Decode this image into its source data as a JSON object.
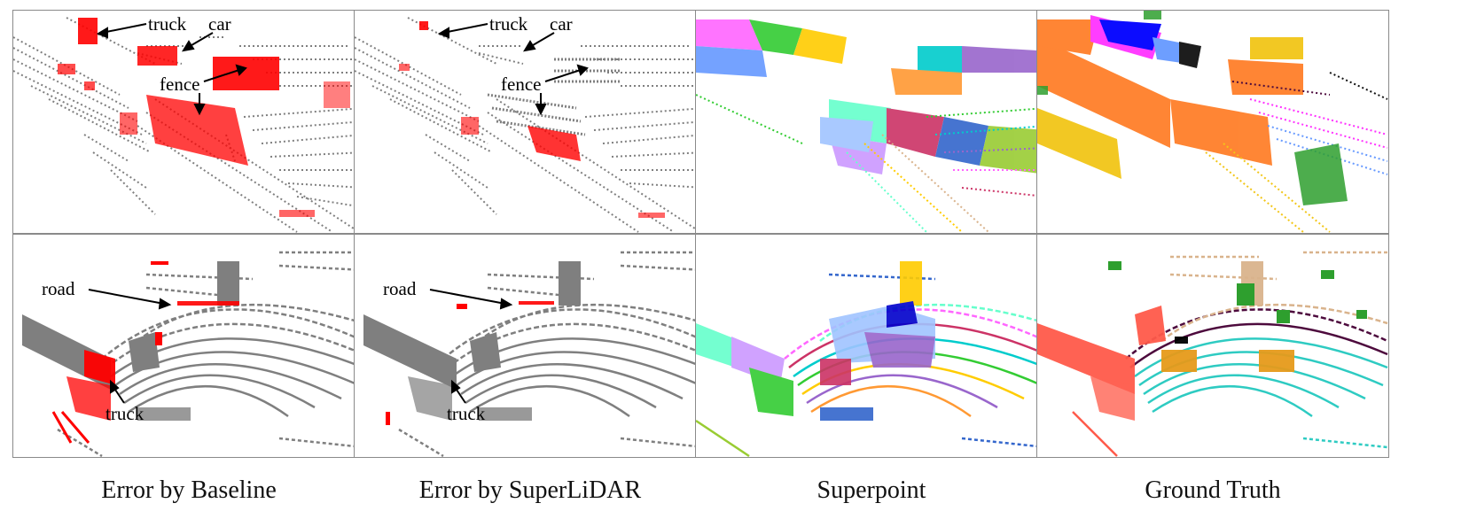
{
  "figure": {
    "captions": [
      "Error by Baseline",
      "Error by SuperLiDAR",
      "Superpoint",
      "Ground Truth"
    ],
    "colors": {
      "correct_points": "#7f7f7f",
      "error_points": "#ff0000",
      "superpoint_palette": [
        "#ff66ff",
        "#33cc33",
        "#6699ff",
        "#ffcc00",
        "#00cccc",
        "#9966cc",
        "#ff9933",
        "#66ffcc",
        "#cc3366",
        "#3366cc",
        "#99cc33",
        "#cc99ff"
      ],
      "gt_palette": [
        "#ff7f2a",
        "#ff33ff",
        "#0000ff",
        "#f2c618",
        "#2ecbc2",
        "#4d0a3d",
        "#2e9f2e",
        "#d9b38c",
        "#ff5a4a",
        "#e69a1a",
        "#9b6dd6"
      ]
    },
    "annotations": {
      "truck": "truck",
      "car": "car",
      "fence": "fence",
      "road": "road"
    }
  }
}
